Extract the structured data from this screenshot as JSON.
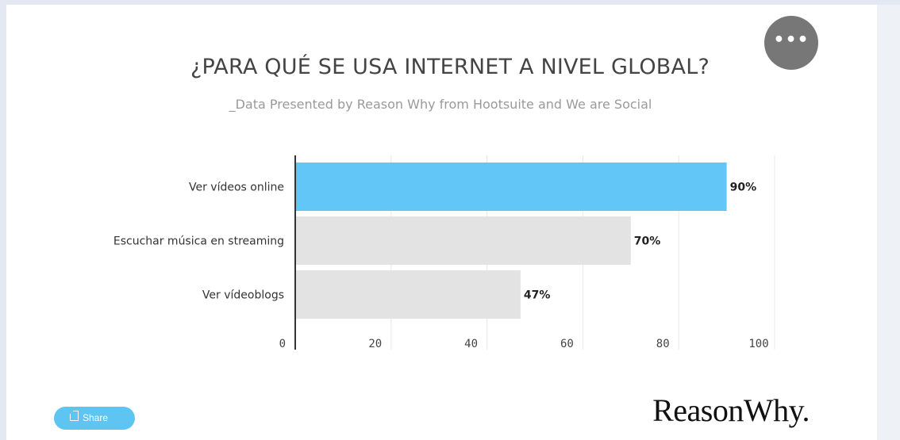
{
  "menu": {
    "label": "•••"
  },
  "share": {
    "label": "Share"
  },
  "brand": {
    "logo_text": "ReasonWhy."
  },
  "colors": {
    "highlight_bar": "#62c6f6",
    "default_bar": "#e3e3e3",
    "axis_line": "#333333",
    "grid_line": "#e8e8e8",
    "menu_button": "#777777",
    "share_button": "#5ec4f2"
  },
  "chart_data": {
    "type": "bar",
    "orientation": "horizontal",
    "title": "¿PARA QUÉ SE USA INTERNET A NIVEL GLOBAL?",
    "subtitle": "_Data Presented by Reason Why from Hootsuite and We are Social",
    "categories": [
      "Ver vídeos online",
      "Escuchar música en streaming",
      "Ver vídeoblogs"
    ],
    "values": [
      90,
      70,
      47
    ],
    "value_labels": [
      "90%",
      "70%",
      "47%"
    ],
    "highlight_index": 0,
    "xlim": [
      0,
      100
    ],
    "xticks": [
      0,
      20,
      40,
      60,
      80,
      100
    ],
    "grid": true
  }
}
